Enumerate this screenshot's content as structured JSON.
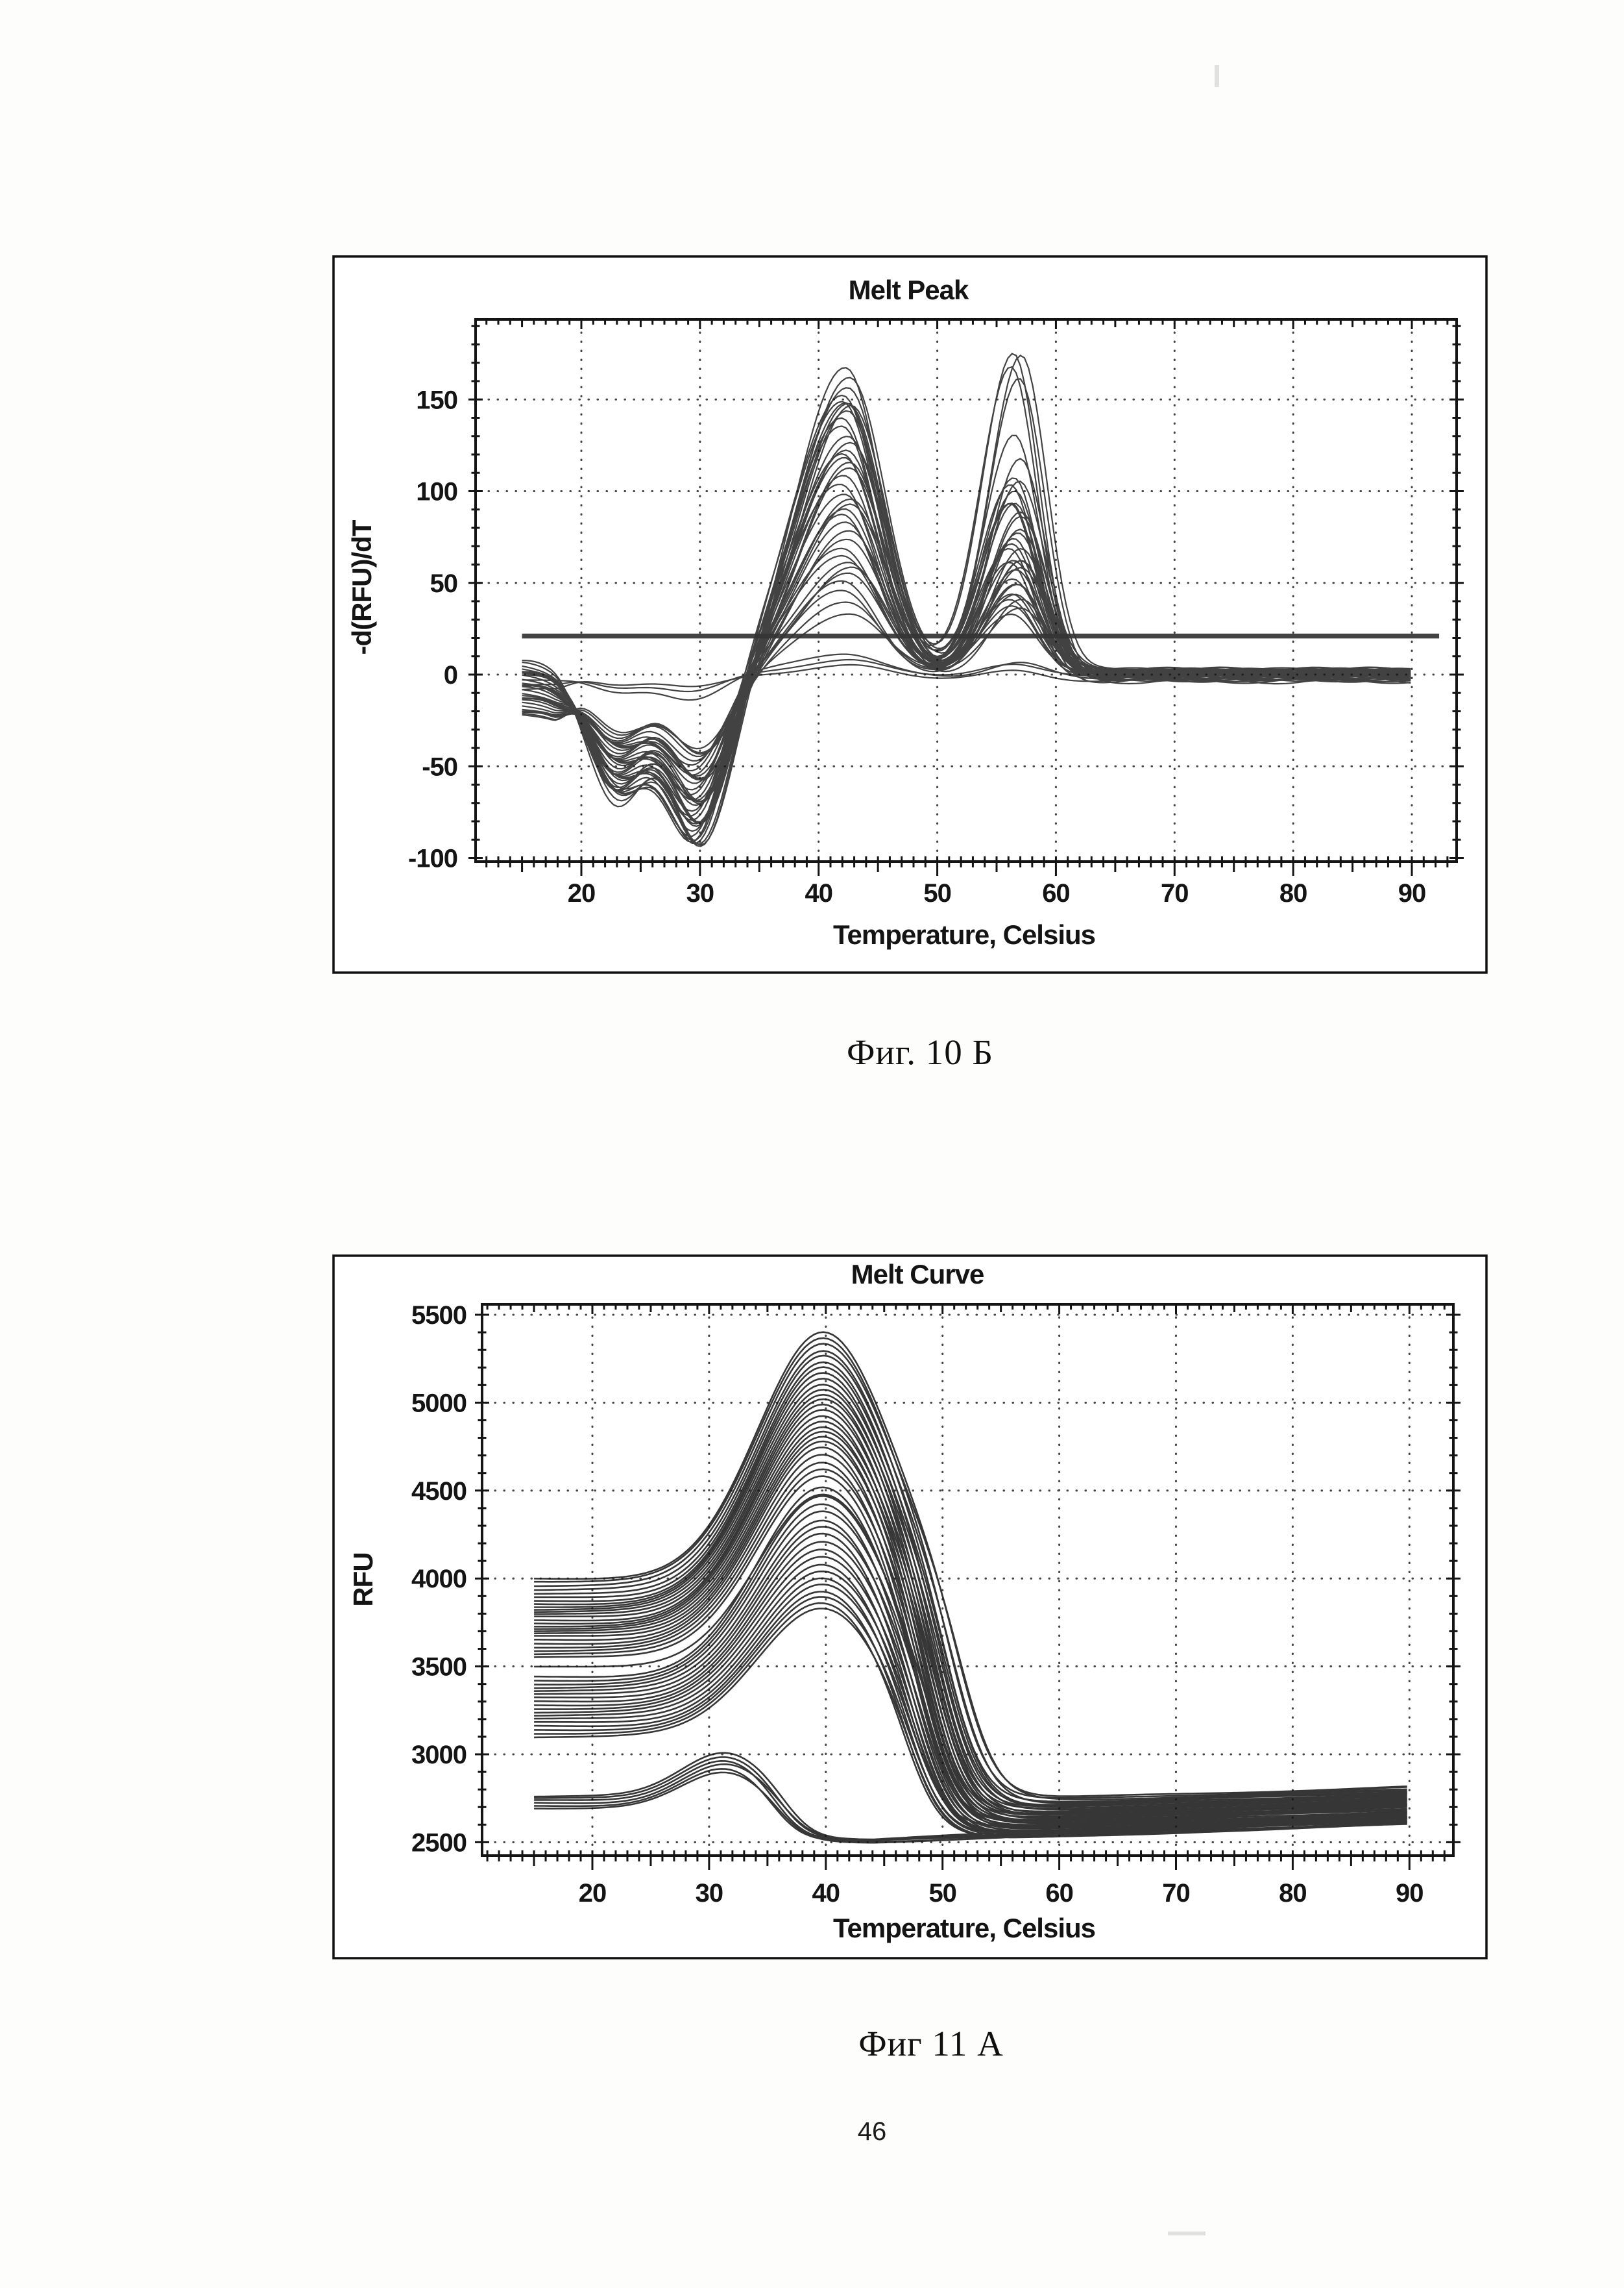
{
  "page": {
    "number": "46"
  },
  "figures": [
    {
      "caption": "Фиг. 10 Б"
    },
    {
      "caption": "Фиг 11 А"
    }
  ],
  "chart_data": [
    {
      "type": "line",
      "kind": "melt_peak",
      "title": "Melt Peak",
      "xlabel": "Temperature, Celsius",
      "ylabel": "-d(RFU)/dT",
      "x_domain": [
        11.1,
        93.8
      ],
      "y_domain": [
        -100,
        190
      ],
      "x_ticks": [
        20,
        30,
        40,
        50,
        60,
        70,
        80,
        90
      ],
      "y_ticks": [
        -100,
        -50,
        0,
        50,
        100,
        150
      ],
      "x_minor_step": 1,
      "y_minor_step": 10,
      "grid": "dotted",
      "legend": "none",
      "x_data_range": [
        15,
        90
      ],
      "threshold_line": {
        "value": 21,
        "x_start": 15.0,
        "x_end": 92.3,
        "color": "#343434"
      },
      "model": {
        "start_hold_until": 17.5,
        "start_decay_sigma": 1.5,
        "dip1_center": 23.0,
        "dip1_sigma": 2.4,
        "dip2_center": 29.8,
        "dip2_sigma": 2.55,
        "peak1_center": 42.3,
        "peak1_sigma_left": 4.1,
        "peak1_sigma_right": 3.0,
        "peak2_center": 56.6,
        "peak2_sigma_left": 2.6,
        "peak2_sigma_right": 2.15
      },
      "curve_params_legend": [
        "start_level",
        "dip1_depth",
        "dip2_depth",
        "peak1_height",
        "peak2_height",
        "end_offset"
      ],
      "curves": [
        [
          6,
          68,
          96,
          166,
          95,
          -2
        ],
        [
          5,
          66,
          93,
          162,
          175,
          1
        ],
        [
          4,
          64,
          91,
          158,
          178,
          -1
        ],
        [
          4,
          63,
          90,
          154,
          168,
          2
        ],
        [
          3,
          62,
          89,
          151,
          120,
          -3
        ],
        [
          2,
          61,
          87,
          148,
          160,
          0
        ],
        [
          2,
          60,
          86,
          145,
          100,
          2
        ],
        [
          1,
          59,
          85,
          142,
          130,
          -1
        ],
        [
          0,
          58,
          83,
          138,
          88,
          1
        ],
        [
          0,
          57,
          82,
          135,
          110,
          -2
        ],
        [
          -1,
          56,
          80,
          131,
          95,
          0
        ],
        [
          -2,
          55,
          79,
          128,
          105,
          2
        ],
        [
          -3,
          54,
          77,
          124,
          80,
          -1
        ],
        [
          -4,
          53,
          76,
          121,
          92,
          1
        ],
        [
          -5,
          52,
          75,
          118,
          75,
          -3
        ],
        [
          -6,
          51,
          73,
          114,
          85,
          0
        ],
        [
          -7,
          50,
          72,
          111,
          98,
          2
        ],
        [
          -8,
          49,
          70,
          108,
          70,
          -1
        ],
        [
          -9,
          48,
          69,
          104,
          78,
          1
        ],
        [
          -10,
          47,
          67,
          100,
          65,
          -2
        ],
        [
          -10,
          46,
          66,
          97,
          72,
          0
        ],
        [
          -11,
          45,
          64,
          93,
          60,
          2
        ],
        [
          -12,
          44,
          63,
          90,
          68,
          -1
        ],
        [
          -13,
          43,
          61,
          86,
          55,
          1
        ],
        [
          -14,
          42,
          59,
          82,
          62,
          -2
        ],
        [
          -15,
          41,
          58,
          78,
          50,
          0
        ],
        [
          -16,
          40,
          56,
          74,
          58,
          2
        ],
        [
          -17,
          39,
          54,
          70,
          46,
          -1
        ],
        [
          -18,
          38,
          53,
          66,
          52,
          1
        ],
        [
          -19,
          37,
          51,
          62,
          42,
          -2
        ],
        [
          -19,
          36,
          49,
          58,
          48,
          0
        ],
        [
          -20,
          35,
          48,
          54,
          38,
          2
        ],
        [
          -21,
          34,
          46,
          50,
          44,
          -1
        ],
        [
          -21,
          33,
          44,
          45,
          36,
          1
        ],
        [
          -22,
          32,
          42,
          40,
          40,
          -2
        ],
        [
          -22,
          31,
          39,
          34,
          34,
          0
        ],
        [
          3,
          60,
          88,
          150,
          62,
          1
        ],
        [
          -2,
          10,
          13,
          12,
          8,
          -2
        ],
        [
          -5,
          7,
          9,
          8,
          5,
          0
        ],
        [
          -8,
          5,
          7,
          5,
          4,
          -3
        ]
      ]
    },
    {
      "type": "line",
      "kind": "melt_curve",
      "title": "Melt Curve",
      "xlabel": "Temperature, Celsius",
      "ylabel": "RFU",
      "x_domain": [
        10.6,
        93.8
      ],
      "y_domain": [
        2424,
        5559
      ],
      "x_ticks": [
        20,
        30,
        40,
        50,
        60,
        70,
        80,
        90
      ],
      "y_ticks": [
        2500,
        3000,
        3500,
        4000,
        4500,
        5000,
        5500
      ],
      "x_minor_step": 1,
      "y_minor_step": 100,
      "grid": "dotted",
      "legend": "none",
      "x_data_range": [
        15,
        90
      ],
      "model_main": {
        "peak_center": 39.8,
        "peak_sigma": 5.6,
        "melt_width": 1.55,
        "end_rise_start": 56,
        "end_rise_span": 34
      },
      "model_low": {
        "peak_center": 31.5,
        "peak_sigma": 3.8,
        "melt_width": 1.3,
        "end_rise_start": 44,
        "end_rise_span": 46
      },
      "curve_params_legend": [
        "start_rfu",
        "peak_rfu",
        "melt_temp",
        "post_melt_rfu",
        "end_rfu"
      ],
      "curves_main": [
        [
          4000,
          5400,
          51.8,
          2745,
          2815
        ],
        [
          3985,
          5370,
          51.2,
          2735,
          2810
        ],
        [
          3960,
          5340,
          52.0,
          2728,
          2800
        ],
        [
          3935,
          5300,
          50.8,
          2720,
          2795
        ],
        [
          3910,
          5270,
          51.5,
          2712,
          2790
        ],
        [
          3890,
          5230,
          50.5,
          2705,
          2788
        ],
        [
          3870,
          5200,
          51.0,
          2698,
          2780
        ],
        [
          3855,
          5170,
          50.2,
          2692,
          2775
        ],
        [
          3840,
          5140,
          50.9,
          2686,
          2770
        ],
        [
          3825,
          5110,
          49.9,
          2680,
          2764
        ],
        [
          3810,
          5080,
          50.6,
          2674,
          2760
        ],
        [
          3795,
          5050,
          49.7,
          2668,
          2755
        ],
        [
          3780,
          5020,
          50.3,
          2662,
          2750
        ],
        [
          3760,
          4990,
          49.5,
          2656,
          2745
        ],
        [
          3745,
          4960,
          50.1,
          2650,
          2740
        ],
        [
          3730,
          4930,
          49.3,
          2645,
          2735
        ],
        [
          3715,
          4900,
          49.9,
          2640,
          2730
        ],
        [
          3700,
          4870,
          49.1,
          2635,
          2726
        ],
        [
          3685,
          4840,
          49.7,
          2630,
          2722
        ],
        [
          3670,
          4810,
          48.9,
          2625,
          2718
        ],
        [
          3650,
          4780,
          49.5,
          2620,
          2712
        ],
        [
          3630,
          4750,
          48.8,
          2615,
          2708
        ],
        [
          3610,
          4710,
          49.3,
          2610,
          2702
        ],
        [
          3590,
          4670,
          48.6,
          2605,
          2698
        ],
        [
          3570,
          4630,
          49.1,
          2600,
          2692
        ],
        [
          3550,
          4590,
          48.5,
          2595,
          2688
        ],
        [
          3495,
          4480,
          49.0,
          2588,
          2680
        ],
        [
          3440,
          4520,
          48.9,
          2582,
          2674
        ],
        [
          3420,
          4470,
          49.6,
          2576,
          2670
        ],
        [
          3400,
          4430,
          48.6,
          2570,
          2665
        ],
        [
          3380,
          4390,
          49.3,
          2565,
          2660
        ],
        [
          3360,
          4340,
          48.4,
          2560,
          2655
        ],
        [
          3340,
          4300,
          49.0,
          2556,
          2650
        ],
        [
          3320,
          4260,
          48.2,
          2552,
          2645
        ],
        [
          3300,
          4210,
          48.8,
          2548,
          2640
        ],
        [
          3280,
          4170,
          48.1,
          2544,
          2635
        ],
        [
          3260,
          4130,
          48.6,
          2540,
          2630
        ],
        [
          3240,
          4090,
          47.9,
          2580,
          2668
        ],
        [
          3220,
          4050,
          48.4,
          2536,
          2625
        ],
        [
          3200,
          4010,
          47.8,
          2532,
          2620
        ],
        [
          3180,
          3970,
          48.2,
          2560,
          2648
        ],
        [
          3160,
          3930,
          47.6,
          2528,
          2615
        ],
        [
          3140,
          3900,
          48.0,
          2545,
          2632
        ],
        [
          3120,
          3870,
          47.5,
          2524,
          2610
        ],
        [
          3100,
          3840,
          47.9,
          2520,
          2605
        ]
      ],
      "curves_low": [
        [
          2760,
          3015,
          37.2,
          2515,
          2665
        ],
        [
          2748,
          2995,
          36.8,
          2510,
          2650
        ],
        [
          2736,
          2975,
          36.4,
          2506,
          2638
        ],
        [
          2722,
          2950,
          37.0,
          2512,
          2625
        ],
        [
          2708,
          2925,
          36.1,
          2503,
          2612
        ],
        [
          2695,
          2900,
          36.6,
          2500,
          2600
        ]
      ]
    }
  ]
}
